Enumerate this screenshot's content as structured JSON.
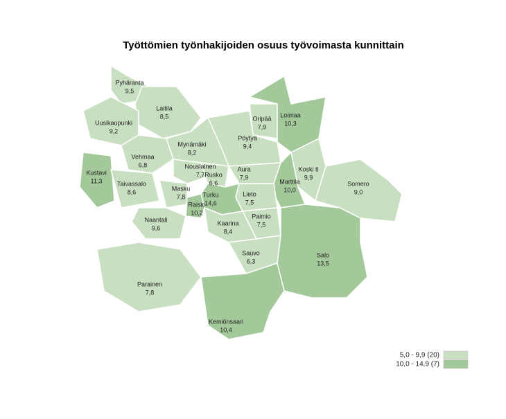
{
  "title": "Työttömien työnhakijoiden osuus työvoimasta kunnittain",
  "regions": [
    {
      "name": "Pyhäranta",
      "value": "9,5",
      "color": "#c9dfc1"
    },
    {
      "name": "Laitila",
      "value": "8,5",
      "color": "#c9dfc1"
    },
    {
      "name": "Uusikaupunki",
      "value": "9,2",
      "color": "#c9dfc1"
    },
    {
      "name": "Oripää",
      "value": "7,9",
      "color": "#c9dfc1"
    },
    {
      "name": "Loimaa",
      "value": "10,3",
      "color": "#a3c99b"
    },
    {
      "name": "Pöytyä",
      "value": "9,4",
      "color": "#c9dfc1"
    },
    {
      "name": "Mynämäki",
      "value": "8,2",
      "color": "#c9dfc1"
    },
    {
      "name": "Vehmaa",
      "value": "6,8",
      "color": "#c9dfc1"
    },
    {
      "name": "Nousiainen",
      "value": "7,7",
      "color": "#c9dfc1"
    },
    {
      "name": "Kustavi",
      "value": "11,3",
      "color": "#a3c99b"
    },
    {
      "name": "Aura",
      "value": "7,9",
      "color": "#c9dfc1"
    },
    {
      "name": "Koski tl",
      "value": "9,9",
      "color": "#c9dfc1"
    },
    {
      "name": "Rusko",
      "value": "6,6",
      "color": "#c9dfc1"
    },
    {
      "name": "Taivassalo",
      "value": "8,6",
      "color": "#c9dfc1"
    },
    {
      "name": "Marttila",
      "value": "10,0",
      "color": "#a3c99b"
    },
    {
      "name": "Somero",
      "value": "9,0",
      "color": "#c9dfc1"
    },
    {
      "name": "Masku",
      "value": "7,8",
      "color": "#c9dfc1"
    },
    {
      "name": "Lieto",
      "value": "7,5",
      "color": "#c9dfc1"
    },
    {
      "name": "Turku",
      "value": "14,6",
      "color": "#a3c99b"
    },
    {
      "name": "Raisio",
      "value": "10,2",
      "color": "#a3c99b"
    },
    {
      "name": "Naantali",
      "value": "9,6",
      "color": "#c9dfc1"
    },
    {
      "name": "Paimio",
      "value": "7,5",
      "color": "#c9dfc1"
    },
    {
      "name": "Kaarina",
      "value": "8,4",
      "color": "#c9dfc1"
    },
    {
      "name": "Sauvo",
      "value": "6,3",
      "color": "#c9dfc1"
    },
    {
      "name": "Salo",
      "value": "13,5",
      "color": "#a3c99b"
    },
    {
      "name": "Parainen",
      "value": "7,8",
      "color": "#c9dfc1"
    },
    {
      "name": "Kemiönsaari",
      "value": "10,4",
      "color": "#a3c99b"
    }
  ],
  "legend": [
    {
      "label": "5,0 - 9,9 (20)",
      "color": "#c9dfc1"
    },
    {
      "label": "10,0 - 14,9 (7)",
      "color": "#a3c99b"
    }
  ]
}
